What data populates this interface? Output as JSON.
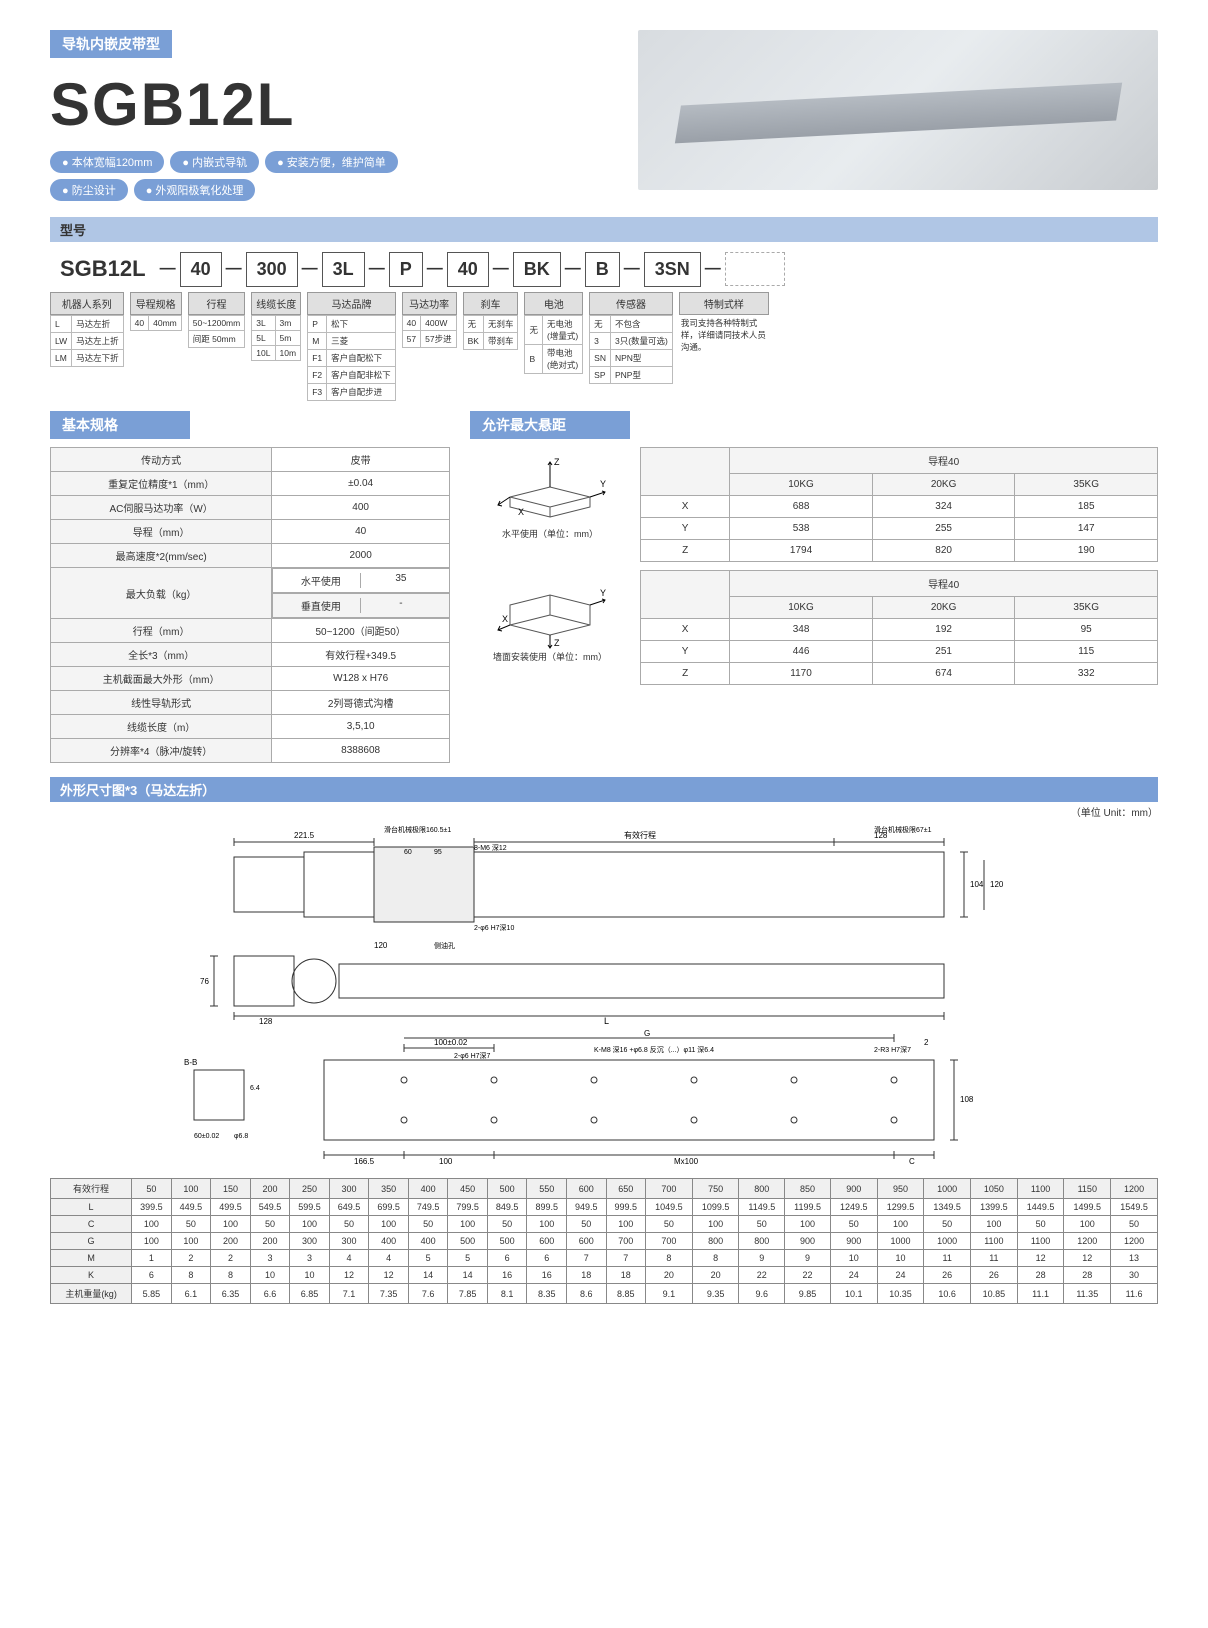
{
  "header": {
    "band": "导轨内嵌皮带型",
    "title": "SGB12L"
  },
  "pills": [
    "● 本体宽幅120mm",
    "● 内嵌式导轨",
    "● 安装方便，维护简单",
    "● 防尘设计",
    "● 外观阳极氧化处理"
  ],
  "sec_model": "型号",
  "model_boxes": [
    "SGB12L",
    "40",
    "300",
    "3L",
    "P",
    "40",
    "BK",
    "B",
    "3SN"
  ],
  "col_hdrs": [
    "机器人系列",
    "导程规格",
    "行程",
    "线缆长度",
    "马达品牌",
    "马达功率",
    "刹车",
    "电池",
    "传感器",
    "特制式样"
  ],
  "c_robot": [
    [
      "L",
      "马达左折"
    ],
    [
      "LW",
      "马达左上折"
    ],
    [
      "LM",
      "马达左下折"
    ]
  ],
  "c_lead": [
    [
      "40",
      "40mm"
    ]
  ],
  "c_stroke": [
    [
      "50~1200mm"
    ],
    [
      "间距 50mm"
    ]
  ],
  "c_cable": [
    [
      "3L",
      "3m"
    ],
    [
      "5L",
      "5m"
    ],
    [
      "10L",
      "10m"
    ]
  ],
  "c_brand": [
    [
      "P",
      "松下"
    ],
    [
      "M",
      "三菱"
    ],
    [
      "F1",
      "客户自配松下"
    ],
    [
      "F2",
      "客户自配非松下"
    ],
    [
      "F3",
      "客户自配步进"
    ]
  ],
  "c_power": [
    [
      "40",
      "400W"
    ],
    [
      "57",
      "57步进"
    ]
  ],
  "c_brake": [
    [
      "无",
      "无刹车"
    ],
    [
      "BK",
      "带刹车"
    ]
  ],
  "c_batt": [
    [
      "无",
      "无电池\n(增量式)"
    ],
    [
      "B",
      "带电池\n(绝对式)"
    ]
  ],
  "c_sensor": [
    [
      "无",
      "不包含"
    ],
    [
      "3",
      "3只(数量可选)"
    ],
    [
      "SN",
      "NPN型"
    ],
    [
      "SP",
      "PNP型"
    ]
  ],
  "c_custom": "我司支持各种特制式样，详细请同技术人员沟通。",
  "sec_basic": "基本规格",
  "spec_rows": [
    [
      "传动方式",
      "皮带"
    ],
    [
      "重复定位精度*1（mm）",
      "±0.04"
    ],
    [
      "AC伺服马达功率（W）",
      "400"
    ],
    [
      "导程（mm）",
      "40"
    ],
    [
      "最高速度*2(mm/sec)",
      "2000"
    ]
  ],
  "spec_load": {
    "label": "最大负载（kg）",
    "h": "水平使用",
    "hv": "35",
    "v": "垂直使用",
    "vv": "-"
  },
  "spec_rows2": [
    [
      "行程（mm）",
      "50~1200（间距50）"
    ],
    [
      "全长*3（mm）",
      "有效行程+349.5"
    ],
    [
      "主机截面最大外形（mm）",
      "W128 x H76"
    ],
    [
      "线性导轨形式",
      "2列哥德式沟槽"
    ],
    [
      "线缆长度（m）",
      "3,5,10"
    ],
    [
      "分辨率*4（脉冲/旋转）",
      "8388608"
    ]
  ],
  "sec_overhang": "允许最大悬距",
  "oh_diag1": "水平使用（单位：mm）",
  "oh_diag2": "墙面安装使用（单位：mm）",
  "oh_hdr": "导程40",
  "oh_cols": [
    "10KG",
    "20KG",
    "35KG"
  ],
  "oh1": [
    [
      "X",
      "688",
      "324",
      "185"
    ],
    [
      "Y",
      "538",
      "255",
      "147"
    ],
    [
      "Z",
      "1794",
      "820",
      "190"
    ]
  ],
  "oh2": [
    [
      "X",
      "348",
      "192",
      "95"
    ],
    [
      "Y",
      "446",
      "251",
      "115"
    ],
    [
      "Z",
      "1170",
      "674",
      "332"
    ]
  ],
  "sec_dim": "外形尺寸图*3（马达左折）",
  "unit": "（单位 Unit：mm）",
  "draw_labels": {
    "d1": "221.5",
    "d2": "有效行程",
    "d3": "128",
    "d4": "滑台机械极限160.5±1",
    "d5": "滑台机械极限67±1",
    "d6": "95",
    "d7": "60",
    "d8": "8-M6 深12",
    "d9": "104",
    "d10": "120",
    "d11": "2-φ6 H7深10",
    "d12": "120",
    "d13": "侧油孔",
    "d14": "76",
    "d15": "128",
    "d16": "L",
    "d17": "100±0.02",
    "d18": "G",
    "d19": "2",
    "d20": "2-φ6 H7深7",
    "d21": "K-M8 深16 +φ6.8 反沉（...）φ11 深6.4",
    "d22": "2-R3 H7深7",
    "d23": "B-B",
    "d24": "6.4",
    "d25": "60±0.02",
    "d26": "φ6.8",
    "d27": "166.5",
    "d28": "100",
    "d29": "Mx100",
    "d30": "C",
    "d31": "108"
  },
  "dim_hdr": [
    "有效行程",
    "50",
    "100",
    "150",
    "200",
    "250",
    "300",
    "350",
    "400",
    "450",
    "500",
    "550",
    "600",
    "650",
    "700",
    "750",
    "800",
    "850",
    "900",
    "950",
    "1000",
    "1050",
    "1100",
    "1150",
    "1200"
  ],
  "dim_rows": [
    [
      "L",
      "399.5",
      "449.5",
      "499.5",
      "549.5",
      "599.5",
      "649.5",
      "699.5",
      "749.5",
      "799.5",
      "849.5",
      "899.5",
      "949.5",
      "999.5",
      "1049.5",
      "1099.5",
      "1149.5",
      "1199.5",
      "1249.5",
      "1299.5",
      "1349.5",
      "1399.5",
      "1449.5",
      "1499.5",
      "1549.5"
    ],
    [
      "C",
      "100",
      "50",
      "100",
      "50",
      "100",
      "50",
      "100",
      "50",
      "100",
      "50",
      "100",
      "50",
      "100",
      "50",
      "100",
      "50",
      "100",
      "50",
      "100",
      "50",
      "100",
      "50",
      "100",
      "50"
    ],
    [
      "G",
      "100",
      "100",
      "200",
      "200",
      "300",
      "300",
      "400",
      "400",
      "500",
      "500",
      "600",
      "600",
      "700",
      "700",
      "800",
      "800",
      "900",
      "900",
      "1000",
      "1000",
      "1100",
      "1100",
      "1200",
      "1200"
    ],
    [
      "M",
      "1",
      "2",
      "2",
      "3",
      "3",
      "4",
      "4",
      "5",
      "5",
      "6",
      "6",
      "7",
      "7",
      "8",
      "8",
      "9",
      "9",
      "10",
      "10",
      "11",
      "11",
      "12",
      "12",
      "13"
    ],
    [
      "K",
      "6",
      "8",
      "8",
      "10",
      "10",
      "12",
      "12",
      "14",
      "14",
      "16",
      "16",
      "18",
      "18",
      "20",
      "20",
      "22",
      "22",
      "24",
      "24",
      "26",
      "26",
      "28",
      "28",
      "30"
    ],
    [
      "主机重量(kg)",
      "5.85",
      "6.1",
      "6.35",
      "6.6",
      "6.85",
      "7.1",
      "7.35",
      "7.6",
      "7.85",
      "8.1",
      "8.35",
      "8.6",
      "8.85",
      "9.1",
      "9.35",
      "9.6",
      "9.85",
      "10.1",
      "10.35",
      "10.6",
      "10.85",
      "11.1",
      "11.35",
      "11.6"
    ]
  ]
}
